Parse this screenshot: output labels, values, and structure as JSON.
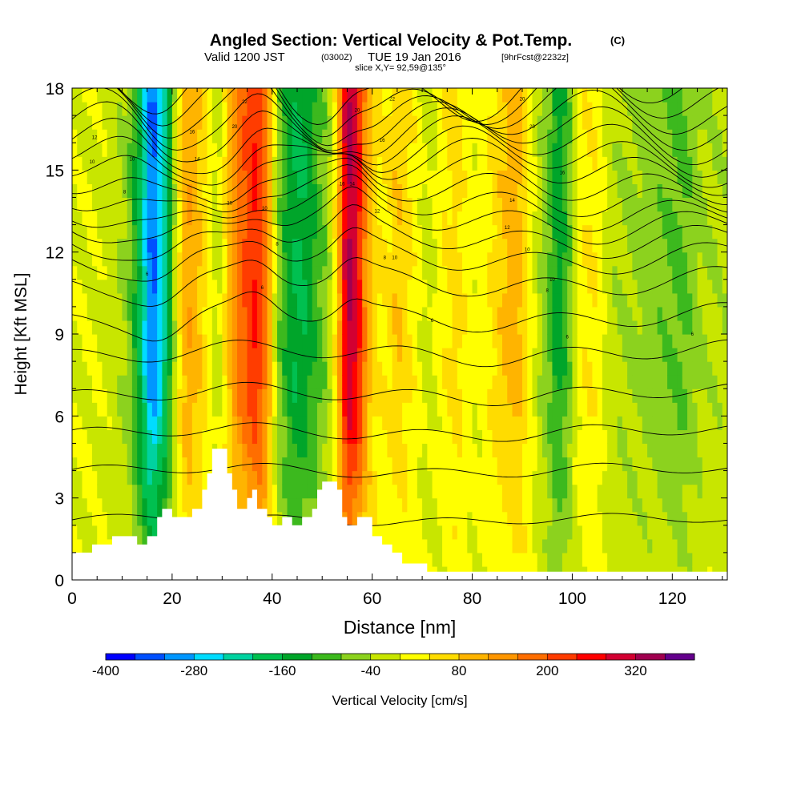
{
  "title": "Angled Section: Vertical Velocity & Pot.Temp.",
  "title_unit": "(C)",
  "subtitle_valid": "Valid 1200 JST",
  "subtitle_utc": "(0300Z)",
  "subtitle_date": "TUE 19 Jan 2016",
  "subtitle_fcst": "[9hrFcst@2232z]",
  "slice_label": "slice X,Y= 92,59@135°",
  "chart_data": {
    "type": "heatmap",
    "title": "Angled Section: Vertical Velocity & Pot.Temp.",
    "xlabel": "Distance [nm]",
    "ylabel": "Height [Kft MSL]",
    "xlim": [
      0,
      131
    ],
    "ylim": [
      0,
      18
    ],
    "x_ticks": [
      "0",
      "20",
      "40",
      "60",
      "80",
      "100",
      "120"
    ],
    "y_ticks": [
      "0",
      "3",
      "6",
      "9",
      "12",
      "15",
      "18"
    ],
    "colorbar": {
      "label": "Vertical Velocity [cm/s]",
      "tick_labels": [
        "-400",
        "-280",
        "-160",
        "-40",
        "80",
        "200",
        "320"
      ],
      "colors": [
        "#0000ff",
        "#0050ff",
        "#0096ff",
        "#00dcff",
        "#00d2a0",
        "#00c050",
        "#00a52a",
        "#3cb91e",
        "#8cd21e",
        "#c8e600",
        "#ffff00",
        "#ffdc00",
        "#ffb400",
        "#ff9600",
        "#ff6e00",
        "#ff3c00",
        "#ff0000",
        "#d20032",
        "#a00050",
        "#64008c"
      ]
    },
    "velocity_columns": [
      {
        "x": 0,
        "w": -5
      },
      {
        "x": 4,
        "w": 0
      },
      {
        "x": 8,
        "w": -20
      },
      {
        "x": 11,
        "w": -50
      },
      {
        "x": 13,
        "w": -140
      },
      {
        "x": 16,
        "w": -340
      },
      {
        "x": 19,
        "w": -190
      },
      {
        "x": 21,
        "w": 20
      },
      {
        "x": 23,
        "w": 120
      },
      {
        "x": 25,
        "w": 90
      },
      {
        "x": 27,
        "w": 40
      },
      {
        "x": 29,
        "w": -30
      },
      {
        "x": 31,
        "w": 70
      },
      {
        "x": 33,
        "w": 170
      },
      {
        "x": 35,
        "w": 210
      },
      {
        "x": 37,
        "w": 250
      },
      {
        "x": 39,
        "w": 150
      },
      {
        "x": 41,
        "w": -50
      },
      {
        "x": 43,
        "w": -130
      },
      {
        "x": 45,
        "w": -170
      },
      {
        "x": 47,
        "w": -150
      },
      {
        "x": 49,
        "w": -100
      },
      {
        "x": 51,
        "w": -60
      },
      {
        "x": 53,
        "w": 60
      },
      {
        "x": 55,
        "w": 340
      },
      {
        "x": 57,
        "w": 280
      },
      {
        "x": 59,
        "w": 120
      },
      {
        "x": 61,
        "w": 40
      },
      {
        "x": 63,
        "w": 40
      },
      {
        "x": 65,
        "w": 80
      },
      {
        "x": 67,
        "w": 50
      },
      {
        "x": 69,
        "w": 20
      },
      {
        "x": 71,
        "w": -20
      },
      {
        "x": 73,
        "w": 10
      },
      {
        "x": 75,
        "w": 40
      },
      {
        "x": 77,
        "w": 60
      },
      {
        "x": 79,
        "w": 20
      },
      {
        "x": 81,
        "w": 10
      },
      {
        "x": 83,
        "w": 30
      },
      {
        "x": 85,
        "w": 60
      },
      {
        "x": 87,
        "w": 90
      },
      {
        "x": 89,
        "w": 110
      },
      {
        "x": 91,
        "w": 40
      },
      {
        "x": 93,
        "w": -20
      },
      {
        "x": 95,
        "w": -70
      },
      {
        "x": 97,
        "w": -150
      },
      {
        "x": 99,
        "w": -100
      },
      {
        "x": 101,
        "w": 10
      },
      {
        "x": 103,
        "w": 40
      },
      {
        "x": 105,
        "w": 30
      },
      {
        "x": 107,
        "w": -20
      },
      {
        "x": 110,
        "w": -40
      },
      {
        "x": 114,
        "w": -55
      },
      {
        "x": 118,
        "w": -70
      },
      {
        "x": 122,
        "w": -90
      },
      {
        "x": 126,
        "w": -40
      },
      {
        "x": 131,
        "w": -30
      }
    ],
    "terrain": [
      [
        0,
        1.0
      ],
      [
        4,
        1.0
      ],
      [
        4,
        1.3
      ],
      [
        8,
        1.3
      ],
      [
        8,
        1.6
      ],
      [
        13,
        1.6
      ],
      [
        13,
        1.3
      ],
      [
        15,
        1.3
      ],
      [
        15,
        1.6
      ],
      [
        17,
        1.6
      ],
      [
        17,
        2.3
      ],
      [
        18,
        2.3
      ],
      [
        18,
        2.6
      ],
      [
        20,
        2.6
      ],
      [
        20,
        2.3
      ],
      [
        24,
        2.3
      ],
      [
        24,
        2.6
      ],
      [
        26,
        2.6
      ],
      [
        26,
        3.3
      ],
      [
        27,
        3.3
      ],
      [
        27,
        3.9
      ],
      [
        28,
        3.9
      ],
      [
        28,
        4.8
      ],
      [
        31,
        4.8
      ],
      [
        31,
        3.9
      ],
      [
        32,
        3.9
      ],
      [
        32,
        3.3
      ],
      [
        33,
        3.3
      ],
      [
        33,
        2.6
      ],
      [
        35,
        2.6
      ],
      [
        35,
        3.0
      ],
      [
        36,
        3.0
      ],
      [
        36,
        3.3
      ],
      [
        37,
        3.3
      ],
      [
        37,
        2.6
      ],
      [
        39,
        2.6
      ],
      [
        39,
        2.3
      ],
      [
        40,
        2.3
      ],
      [
        40,
        2.0
      ],
      [
        42,
        2.0
      ],
      [
        42,
        2.3
      ],
      [
        44,
        2.3
      ],
      [
        44,
        2.0
      ],
      [
        46,
        2.0
      ],
      [
        46,
        2.3
      ],
      [
        48,
        2.3
      ],
      [
        48,
        2.6
      ],
      [
        49,
        2.6
      ],
      [
        49,
        3.3
      ],
      [
        50,
        3.3
      ],
      [
        50,
        3.6
      ],
      [
        53,
        3.6
      ],
      [
        53,
        3.3
      ],
      [
        54,
        3.3
      ],
      [
        54,
        2.3
      ],
      [
        55,
        2.3
      ],
      [
        55,
        2.0
      ],
      [
        57,
        2.0
      ],
      [
        57,
        2.3
      ],
      [
        60,
        2.3
      ],
      [
        60,
        1.6
      ],
      [
        62,
        1.6
      ],
      [
        62,
        1.3
      ],
      [
        64,
        1.3
      ],
      [
        64,
        1.0
      ],
      [
        66,
        1.0
      ],
      [
        66,
        0.6
      ],
      [
        71,
        0.6
      ],
      [
        71,
        0.3
      ],
      [
        131,
        0.3
      ]
    ],
    "isentrope_labels": [
      {
        "x": 4,
        "y": 15.3,
        "text": "10"
      },
      {
        "x": 4.5,
        "y": 16.2,
        "text": "12"
      },
      {
        "x": 12,
        "y": 15.4,
        "text": "10"
      },
      {
        "x": 10.5,
        "y": 14.2,
        "text": "8"
      },
      {
        "x": 15,
        "y": 11.2,
        "text": "6"
      },
      {
        "x": 24,
        "y": 16.4,
        "text": "16"
      },
      {
        "x": 25,
        "y": 15.4,
        "text": "14"
      },
      {
        "x": 32.5,
        "y": 16.6,
        "text": "20"
      },
      {
        "x": 34.5,
        "y": 17.5,
        "text": "22"
      },
      {
        "x": 31.5,
        "y": 13.8,
        "text": "10"
      },
      {
        "x": 38.5,
        "y": 13.6,
        "text": "10"
      },
      {
        "x": 41,
        "y": 12.3,
        "text": "8"
      },
      {
        "x": 38,
        "y": 10.7,
        "text": "6"
      },
      {
        "x": 57,
        "y": 17.2,
        "text": "20"
      },
      {
        "x": 54,
        "y": 14.5,
        "text": "16"
      },
      {
        "x": 56,
        "y": 14.5,
        "text": "14"
      },
      {
        "x": 62,
        "y": 16.1,
        "text": "16"
      },
      {
        "x": 64,
        "y": 17.6,
        "text": "22"
      },
      {
        "x": 61,
        "y": 13.5,
        "text": "12"
      },
      {
        "x": 62.5,
        "y": 11.8,
        "text": "8"
      },
      {
        "x": 64.5,
        "y": 11.8,
        "text": "10"
      },
      {
        "x": 72,
        "y": 9.5,
        "text": "6"
      },
      {
        "x": 90,
        "y": 17.6,
        "text": "20"
      },
      {
        "x": 92,
        "y": 16.6,
        "text": "20"
      },
      {
        "x": 88,
        "y": 13.9,
        "text": "14"
      },
      {
        "x": 87,
        "y": 12.9,
        "text": "12"
      },
      {
        "x": 91,
        "y": 12.1,
        "text": "10"
      },
      {
        "x": 95,
        "y": 10.6,
        "text": "8"
      },
      {
        "x": 96,
        "y": 11.0,
        "text": "10"
      },
      {
        "x": 98,
        "y": 14.9,
        "text": "16"
      },
      {
        "x": 99,
        "y": 8.9,
        "text": "6"
      },
      {
        "x": 124,
        "y": 9.0,
        "text": "6"
      }
    ]
  }
}
